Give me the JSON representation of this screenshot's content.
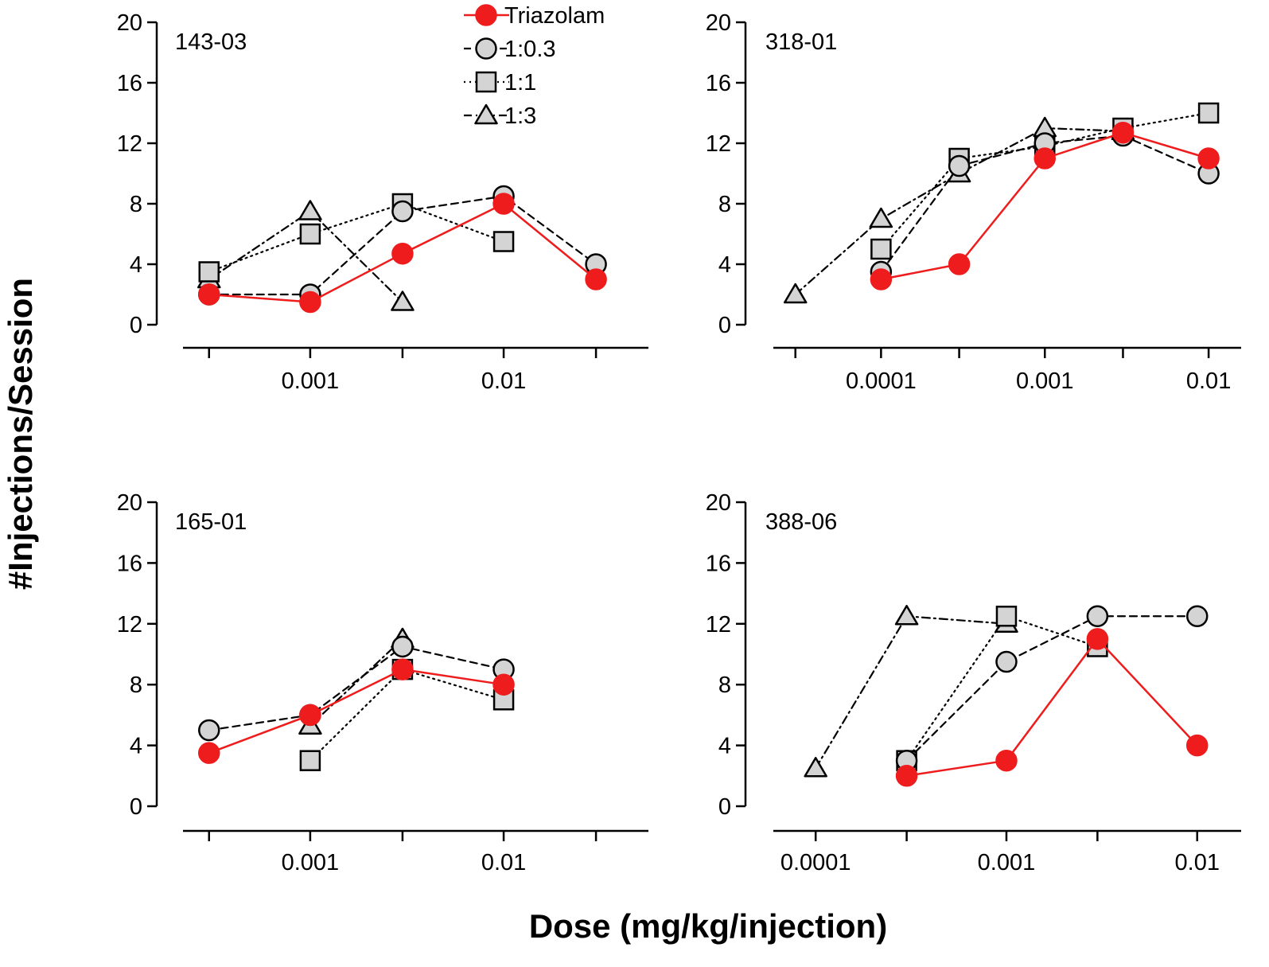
{
  "figure": {
    "ylabel": "#Injections/Session",
    "xlabel": "Dose (mg/kg/injection)"
  },
  "colors": {
    "triazolam": "#ee1c1c",
    "marker_fill": "#d4d4d4",
    "line": "#000000"
  },
  "legend": [
    {
      "series": "Triazolam",
      "label": "Triazolam",
      "marker": "circle",
      "style": "solid"
    },
    {
      "series": "1:0.3",
      "label": "1:0.3",
      "marker": "circle",
      "style": "dashed"
    },
    {
      "series": "1:1",
      "label": "1:1",
      "marker": "square",
      "style": "dotted"
    },
    {
      "series": "1:3",
      "label": "1:3",
      "marker": "triangle",
      "style": "dashdot"
    }
  ],
  "chart_data": [
    {
      "type": "line",
      "title": "143-03",
      "xscale": "log",
      "xlim": [
        0.00022,
        0.056
      ],
      "ylim": [
        0,
        20
      ],
      "yticks": [
        0,
        4,
        8,
        12,
        16,
        20
      ],
      "xticks": [
        0.0003,
        0.001,
        0.003,
        0.01,
        0.03
      ],
      "xtick_labels": [
        "",
        "0.001",
        "",
        "0.01",
        ""
      ],
      "series": [
        {
          "name": "Triazolam",
          "x": [
            0.0003,
            0.001,
            0.003,
            0.01,
            0.03
          ],
          "y": [
            2,
            1.5,
            4.7,
            8,
            3
          ]
        },
        {
          "name": "1:0.3",
          "x": [
            0.0003,
            0.001,
            0.003,
            0.01,
            0.03
          ],
          "y": [
            2,
            2,
            7.5,
            8.5,
            4
          ]
        },
        {
          "name": "1:1",
          "x": [
            0.0003,
            0.001,
            0.003,
            0.01
          ],
          "y": [
            3.5,
            6,
            8,
            5.5
          ]
        },
        {
          "name": "1:3",
          "x": [
            0.0003,
            0.001,
            0.003
          ],
          "y": [
            3,
            7.5,
            1.5
          ]
        }
      ]
    },
    {
      "type": "line",
      "title": "318-01",
      "xscale": "log",
      "xlim": [
        2.2e-05,
        0.0158
      ],
      "ylim": [
        0,
        20
      ],
      "yticks": [
        0,
        4,
        8,
        12,
        16,
        20
      ],
      "xticks": [
        3e-05,
        0.0001,
        0.0003,
        0.001,
        0.003,
        0.01
      ],
      "xtick_labels": [
        "",
        "0.0001",
        "",
        "0.001",
        "",
        "0.01"
      ],
      "series": [
        {
          "name": "Triazolam",
          "x": [
            0.0001,
            0.0003,
            0.001,
            0.003,
            0.01
          ],
          "y": [
            3,
            4,
            11,
            12.7,
            11
          ]
        },
        {
          "name": "1:0.3",
          "x": [
            0.0001,
            0.0003,
            0.001,
            0.003,
            0.01
          ],
          "y": [
            3.5,
            10.5,
            12,
            12.5,
            10
          ]
        },
        {
          "name": "1:1",
          "x": [
            0.0001,
            0.0003,
            0.001,
            0.003,
            0.01
          ],
          "y": [
            5,
            11,
            11.8,
            13,
            14
          ]
        },
        {
          "name": "1:3",
          "x": [
            3e-05,
            0.0001,
            0.0003,
            0.001,
            0.003
          ],
          "y": [
            2,
            7,
            10,
            13,
            12.8
          ]
        }
      ]
    },
    {
      "type": "line",
      "title": "165-01",
      "xscale": "log",
      "xlim": [
        0.00022,
        0.056
      ],
      "ylim": [
        0,
        20
      ],
      "yticks": [
        0,
        4,
        8,
        12,
        16,
        20
      ],
      "xticks": [
        0.0003,
        0.001,
        0.003,
        0.01,
        0.03
      ],
      "xtick_labels": [
        "",
        "0.001",
        "",
        "0.01",
        ""
      ],
      "series": [
        {
          "name": "Triazolam",
          "x": [
            0.0003,
            0.001,
            0.003,
            0.01
          ],
          "y": [
            3.5,
            6,
            9,
            8
          ]
        },
        {
          "name": "1:0.3",
          "x": [
            0.0003,
            0.001,
            0.003,
            0.01
          ],
          "y": [
            5,
            6,
            10.5,
            9
          ]
        },
        {
          "name": "1:1",
          "x": [
            0.001,
            0.003,
            0.01
          ],
          "y": [
            3,
            9,
            7
          ]
        },
        {
          "name": "1:3",
          "x": [
            0.001,
            0.003
          ],
          "y": [
            5.3,
            11
          ]
        }
      ]
    },
    {
      "type": "line",
      "title": "388-06",
      "xscale": "log",
      "xlim": [
        6e-05,
        0.017
      ],
      "ylim": [
        0,
        20
      ],
      "yticks": [
        0,
        4,
        8,
        12,
        16,
        20
      ],
      "xticks": [
        0.0001,
        0.0003,
        0.001,
        0.003,
        0.01
      ],
      "xtick_labels": [
        "0.0001",
        "",
        "0.001",
        "",
        "0.01"
      ],
      "series": [
        {
          "name": "Triazolam",
          "x": [
            0.0003,
            0.001,
            0.003,
            0.01
          ],
          "y": [
            2,
            3,
            11,
            4
          ]
        },
        {
          "name": "1:0.3",
          "x": [
            0.0003,
            0.001,
            0.003,
            0.01
          ],
          "y": [
            3,
            9.5,
            12.5,
            12.5
          ]
        },
        {
          "name": "1:1",
          "x": [
            0.0003,
            0.001,
            0.003
          ],
          "y": [
            3,
            12.5,
            10.5
          ]
        },
        {
          "name": "1:3",
          "x": [
            0.0001,
            0.0003,
            0.001
          ],
          "y": [
            2.5,
            12.5,
            12
          ]
        }
      ]
    }
  ]
}
